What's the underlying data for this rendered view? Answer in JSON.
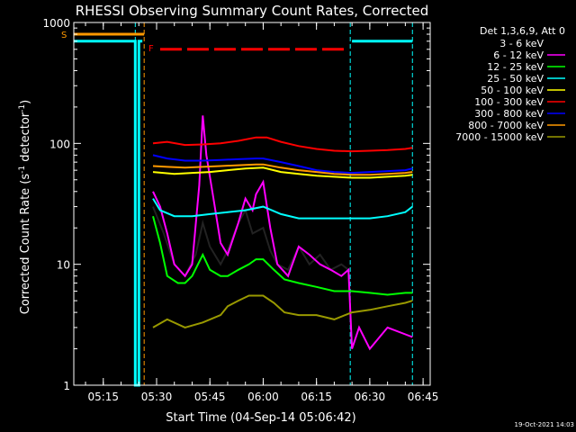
{
  "chart_data": {
    "type": "line",
    "title": "RHESSI Observing Summary Count Rates, Corrected",
    "xlabel": "Start Time (04-Sep-14 05:06:42)",
    "ylabel_main": "Corrected Count Rate (s",
    "ylabel_sup1": "-1",
    "ylabel_mid": " detector",
    "ylabel_sup2": "-1",
    "ylabel_end": ")",
    "yscale": "log",
    "ylim": [
      1,
      1000
    ],
    "xlim": [
      "05:06:42",
      "06:47:00"
    ],
    "x_ticks": [
      "05:15",
      "05:30",
      "05:45",
      "06:00",
      "06:15",
      "06:30",
      "06:45"
    ],
    "y_ticks": [
      "1",
      "10",
      "100",
      "1000"
    ],
    "legend_title": "Det 1,3,6,9, Att 0",
    "legend_position": "right",
    "timestamp": "19-Oct-2021 14:03",
    "flags": {
      "S": "S",
      "F": "F"
    },
    "series": [
      {
        "name": "3 - 6 keV",
        "color": "#000000",
        "points": [
          [
            "05:29",
            30
          ],
          [
            "05:32",
            18
          ],
          [
            "05:35",
            10
          ],
          [
            "05:38",
            8
          ],
          [
            "05:41",
            12
          ],
          [
            "05:43",
            22
          ],
          [
            "05:45",
            14
          ],
          [
            "05:48",
            10
          ],
          [
            "05:50",
            13
          ],
          [
            "05:53",
            22
          ],
          [
            "05:55",
            28
          ],
          [
            "05:57",
            18
          ],
          [
            "06:00",
            20
          ],
          [
            "06:02",
            13
          ],
          [
            "06:04",
            10
          ],
          [
            "06:07",
            9
          ],
          [
            "06:10",
            14
          ],
          [
            "06:13",
            10
          ],
          [
            "06:16",
            12
          ],
          [
            "06:19",
            9
          ],
          [
            "06:22",
            10
          ],
          [
            "06:24",
            9
          ]
        ]
      },
      {
        "name": "6 - 12 keV",
        "color": "#ff00ff",
        "points": [
          [
            "05:29",
            40
          ],
          [
            "05:31",
            30
          ],
          [
            "05:33",
            18
          ],
          [
            "05:35",
            10
          ],
          [
            "05:38",
            8
          ],
          [
            "05:40",
            10
          ],
          [
            "05:42",
            45
          ],
          [
            "05:43",
            170
          ],
          [
            "05:44",
            80
          ],
          [
            "05:46",
            35
          ],
          [
            "05:48",
            15
          ],
          [
            "05:50",
            12
          ],
          [
            "05:53",
            22
          ],
          [
            "05:55",
            35
          ],
          [
            "05:57",
            28
          ],
          [
            "05:58",
            38
          ],
          [
            "06:00",
            48
          ],
          [
            "06:02",
            20
          ],
          [
            "06:04",
            10
          ],
          [
            "06:07",
            8
          ],
          [
            "06:10",
            14
          ],
          [
            "06:13",
            12
          ],
          [
            "06:16",
            10
          ],
          [
            "06:19",
            9
          ],
          [
            "06:22",
            8
          ],
          [
            "06:24",
            9
          ],
          [
            "06:25",
            2
          ],
          [
            "06:27",
            3
          ],
          [
            "06:30",
            2
          ],
          [
            "06:35",
            3
          ],
          [
            "06:42",
            2.5
          ]
        ]
      },
      {
        "name": "12 - 25 keV",
        "color": "#00ff00",
        "points": [
          [
            "05:29",
            25
          ],
          [
            "05:31",
            15
          ],
          [
            "05:33",
            8
          ],
          [
            "05:36",
            7
          ],
          [
            "05:38",
            7
          ],
          [
            "05:40",
            8
          ],
          [
            "05:43",
            12
          ],
          [
            "05:45",
            9
          ],
          [
            "05:48",
            8
          ],
          [
            "05:50",
            8
          ],
          [
            "05:53",
            9
          ],
          [
            "05:56",
            10
          ],
          [
            "05:58",
            11
          ],
          [
            "06:00",
            11
          ],
          [
            "06:03",
            9
          ],
          [
            "06:06",
            7.5
          ],
          [
            "06:10",
            7
          ],
          [
            "06:15",
            6.5
          ],
          [
            "06:20",
            6
          ],
          [
            "06:25",
            6
          ],
          [
            "06:30",
            5.8
          ],
          [
            "06:35",
            5.6
          ],
          [
            "06:40",
            5.8
          ],
          [
            "06:42",
            5.8
          ]
        ]
      },
      {
        "name": "25 - 50 keV",
        "color": "#00ffff",
        "points": [
          [
            "05:29",
            35
          ],
          [
            "05:31",
            28
          ],
          [
            "05:35",
            25
          ],
          [
            "05:40",
            25
          ],
          [
            "05:45",
            26
          ],
          [
            "05:50",
            27
          ],
          [
            "05:55",
            28
          ],
          [
            "06:00",
            30
          ],
          [
            "06:05",
            26
          ],
          [
            "06:10",
            24
          ],
          [
            "06:15",
            24
          ],
          [
            "06:20",
            24
          ],
          [
            "06:25",
            24
          ],
          [
            "06:30",
            24
          ],
          [
            "06:35",
            25
          ],
          [
            "06:40",
            27
          ],
          [
            "06:42",
            30
          ]
        ]
      },
      {
        "name": "50 - 100 keV",
        "color": "#ffff00",
        "points": [
          [
            "05:29",
            58
          ],
          [
            "05:35",
            56
          ],
          [
            "05:40",
            57
          ],
          [
            "05:45",
            58
          ],
          [
            "05:50",
            60
          ],
          [
            "05:55",
            62
          ],
          [
            "06:00",
            63
          ],
          [
            "06:05",
            58
          ],
          [
            "06:10",
            56
          ],
          [
            "06:15",
            54
          ],
          [
            "06:20",
            53
          ],
          [
            "06:25",
            52
          ],
          [
            "06:30",
            52
          ],
          [
            "06:35",
            53
          ],
          [
            "06:40",
            54
          ],
          [
            "06:42",
            55
          ]
        ]
      },
      {
        "name": "100 - 300 keV",
        "color": "#ff0000",
        "points": [
          [
            "05:29",
            100
          ],
          [
            "05:33",
            103
          ],
          [
            "05:38",
            97
          ],
          [
            "05:43",
            98
          ],
          [
            "05:48",
            100
          ],
          [
            "05:53",
            105
          ],
          [
            "05:58",
            112
          ],
          [
            "06:01",
            112
          ],
          [
            "06:05",
            103
          ],
          [
            "06:10",
            95
          ],
          [
            "06:15",
            90
          ],
          [
            "06:20",
            87
          ],
          [
            "06:25",
            86
          ],
          [
            "06:30",
            87
          ],
          [
            "06:35",
            88
          ],
          [
            "06:40",
            90
          ],
          [
            "06:42",
            92
          ]
        ]
      },
      {
        "name": "300 - 800 keV",
        "color": "#0000ff",
        "points": [
          [
            "05:29",
            80
          ],
          [
            "05:33",
            75
          ],
          [
            "05:38",
            72
          ],
          [
            "05:43",
            72
          ],
          [
            "05:48",
            73
          ],
          [
            "05:53",
            74
          ],
          [
            "05:58",
            75
          ],
          [
            "06:00",
            75
          ],
          [
            "06:05",
            70
          ],
          [
            "06:10",
            65
          ],
          [
            "06:15",
            60
          ],
          [
            "06:20",
            58
          ],
          [
            "06:25",
            57
          ],
          [
            "06:30",
            58
          ],
          [
            "06:35",
            59
          ],
          [
            "06:40",
            60
          ],
          [
            "06:42",
            62
          ]
        ]
      },
      {
        "name": "800 - 7000 keV",
        "color": "#ff9900",
        "points": [
          [
            "05:29",
            65
          ],
          [
            "05:33",
            64
          ],
          [
            "05:38",
            63
          ],
          [
            "05:43",
            64
          ],
          [
            "05:48",
            65
          ],
          [
            "05:53",
            66
          ],
          [
            "05:58",
            67
          ],
          [
            "06:00",
            67
          ],
          [
            "06:05",
            63
          ],
          [
            "06:10",
            60
          ],
          [
            "06:15",
            58
          ],
          [
            "06:20",
            56
          ],
          [
            "06:25",
            55
          ],
          [
            "06:30",
            55
          ],
          [
            "06:35",
            56
          ],
          [
            "06:40",
            57
          ],
          [
            "06:42",
            58
          ]
        ]
      },
      {
        "name": "7000 - 15000 keV",
        "color": "#999900",
        "points": [
          [
            "05:29",
            3
          ],
          [
            "05:33",
            3.5
          ],
          [
            "05:38",
            3
          ],
          [
            "05:43",
            3.3
          ],
          [
            "05:48",
            3.8
          ],
          [
            "05:50",
            4.5
          ],
          [
            "05:53",
            5
          ],
          [
            "05:56",
            5.5
          ],
          [
            "06:00",
            5.5
          ],
          [
            "06:03",
            4.8
          ],
          [
            "06:06",
            4
          ],
          [
            "06:10",
            3.8
          ],
          [
            "06:15",
            3.8
          ],
          [
            "06:20",
            3.5
          ],
          [
            "06:25",
            4
          ],
          [
            "06:30",
            4.2
          ],
          [
            "06:35",
            4.5
          ],
          [
            "06:40",
            4.8
          ],
          [
            "06:42",
            5
          ]
        ]
      }
    ],
    "attenuator_states": [
      {
        "color": "#00ffff",
        "name": "",
        "points": [
          [
            "05:06:42",
            700
          ],
          [
            "05:24",
            700
          ],
          [
            "05:24",
            1
          ],
          [
            "05:25",
            1
          ],
          [
            "05:25",
            700
          ],
          [
            "05:26",
            700
          ]
        ]
      },
      {
        "color": "#00ffff",
        "name": "",
        "points": [
          [
            "06:25",
            700
          ],
          [
            "06:42",
            700
          ]
        ]
      }
    ],
    "saa_bar": {
      "label": "S",
      "color": "#ff9900",
      "start": "05:06:42",
      "end": "05:26:30",
      "level": 800
    },
    "flare_bar": {
      "label": "F",
      "color": "#ff0000",
      "start": "05:31",
      "end": "06:24",
      "level": 600
    },
    "vertical_markers": [
      {
        "time": "05:06:42",
        "color": "#00ffff",
        "style": "dashed"
      },
      {
        "time": "05:24",
        "color": "#00ffff",
        "style": "dashed"
      },
      {
        "time": "05:26:30",
        "color": "#ff9900",
        "style": "dashed"
      },
      {
        "time": "06:24:30",
        "color": "#00ffff",
        "style": "dashed"
      },
      {
        "time": "06:42",
        "color": "#00ffff",
        "style": "dashed"
      }
    ]
  }
}
